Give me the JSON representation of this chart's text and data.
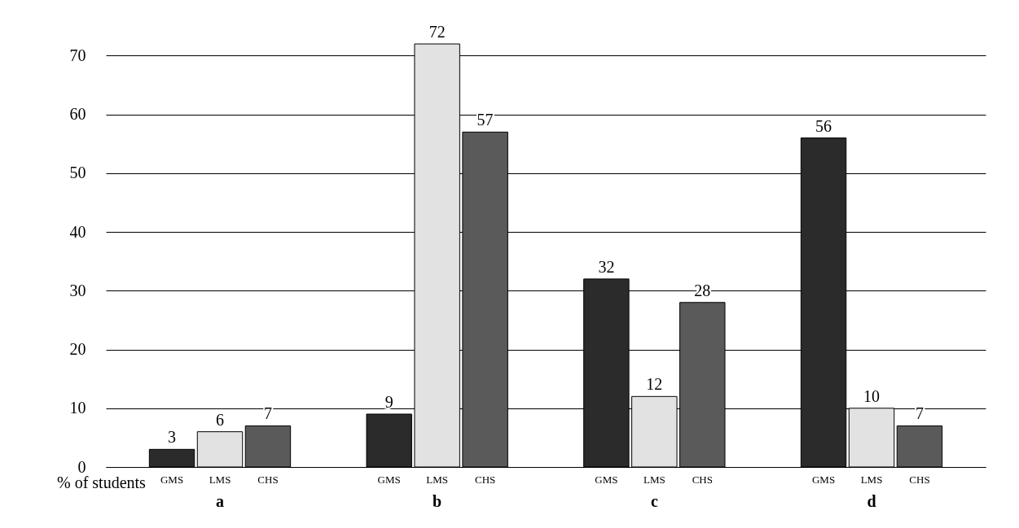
{
  "chart_data": {
    "type": "bar",
    "ylabel": "% of students",
    "categories": [
      "a",
      "b",
      "c",
      "d"
    ],
    "series": [
      {
        "name": "GMS",
        "color": "#2b2b2b",
        "values": [
          3,
          9,
          32,
          56
        ]
      },
      {
        "name": "LMS",
        "color": "#e2e2e2",
        "values": [
          6,
          72,
          12,
          10
        ]
      },
      {
        "name": "CHS",
        "color": "#5a5a5a",
        "values": [
          7,
          57,
          28,
          7
        ]
      }
    ],
    "ylim": [
      0,
      72
    ],
    "yticks": [
      0,
      10,
      20,
      30,
      40,
      50,
      60,
      70
    ],
    "grid": "y",
    "data_labels": true,
    "legend": false
  }
}
